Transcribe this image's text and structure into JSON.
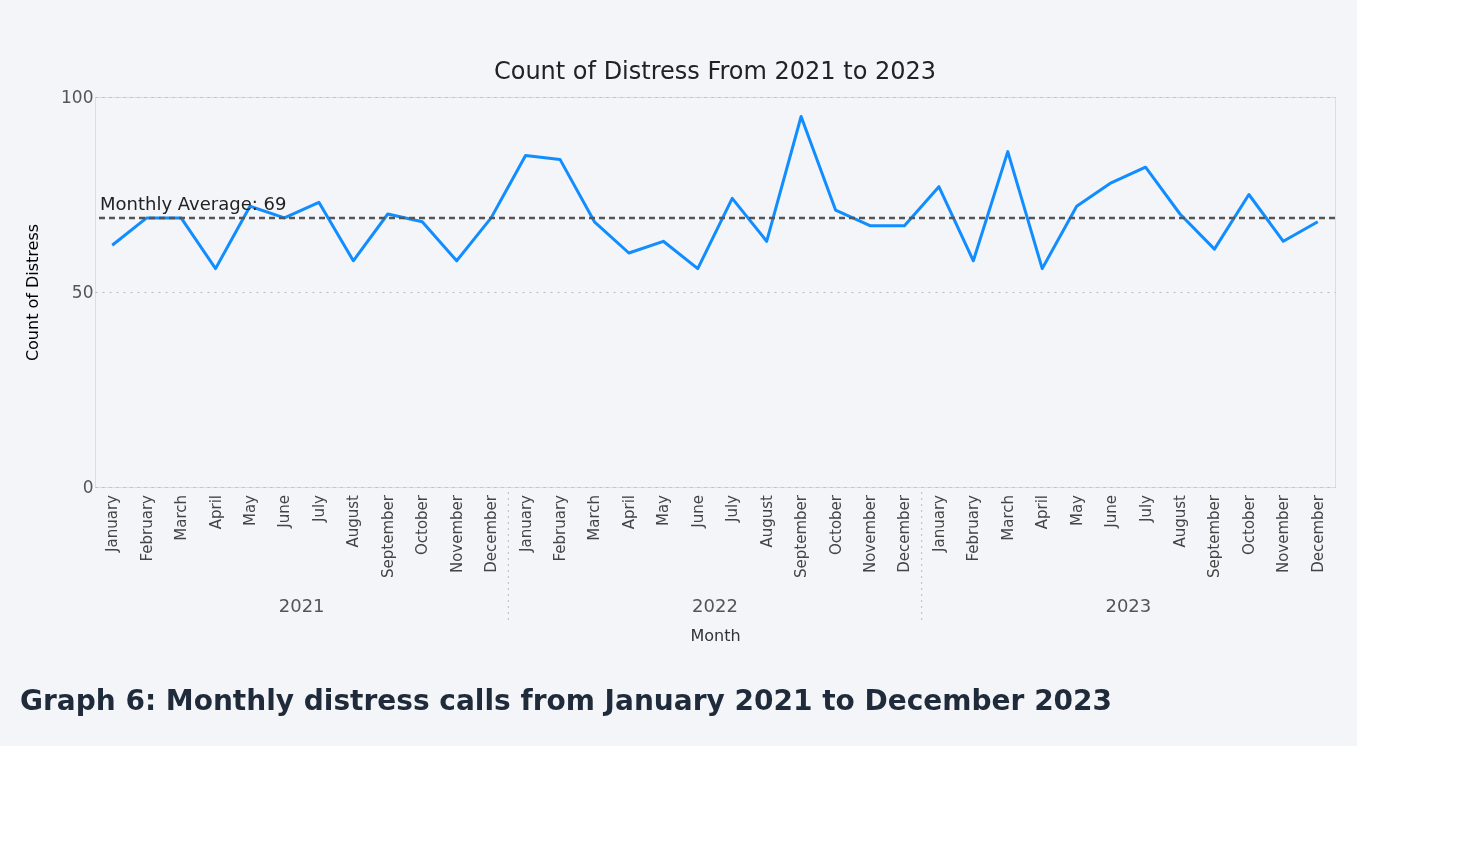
{
  "chart_data": {
    "type": "line",
    "title": "Count of Distress From 2021 to 2023",
    "xlabel": "Month",
    "ylabel": "Count of Distress",
    "categories": [
      "January",
      "February",
      "March",
      "April",
      "May",
      "June",
      "July",
      "August",
      "September",
      "October",
      "November",
      "December",
      "January",
      "February",
      "March",
      "April",
      "May",
      "June",
      "July",
      "August",
      "September",
      "October",
      "November",
      "December",
      "January",
      "February",
      "March",
      "April",
      "May",
      "June",
      "July",
      "August",
      "September",
      "October",
      "November",
      "December"
    ],
    "series": [
      {
        "color": "#118dff",
        "values": [
          62,
          69,
          69,
          56,
          72,
          69,
          73,
          58,
          70,
          68,
          58,
          69,
          85,
          84,
          68,
          60,
          63,
          56,
          74,
          63,
          95,
          71,
          67,
          67,
          77,
          58,
          86,
          56,
          72,
          78,
          82,
          70,
          61,
          75,
          63,
          68
        ]
      }
    ],
    "ylim": [
      0,
      100
    ],
    "yticks": [
      0,
      50,
      100
    ],
    "grid": "y",
    "marker": "none",
    "line_style": "solid",
    "ref_lines": [
      {
        "axis": "y",
        "value": 69,
        "label": "Monthly Average: 69",
        "color": "#555555",
        "line_style": "dashed"
      }
    ],
    "annotations": [
      "2021",
      "2022",
      "2023",
      "Graph 6: Monthly distress calls from January 2021 to December 2023"
    ]
  }
}
